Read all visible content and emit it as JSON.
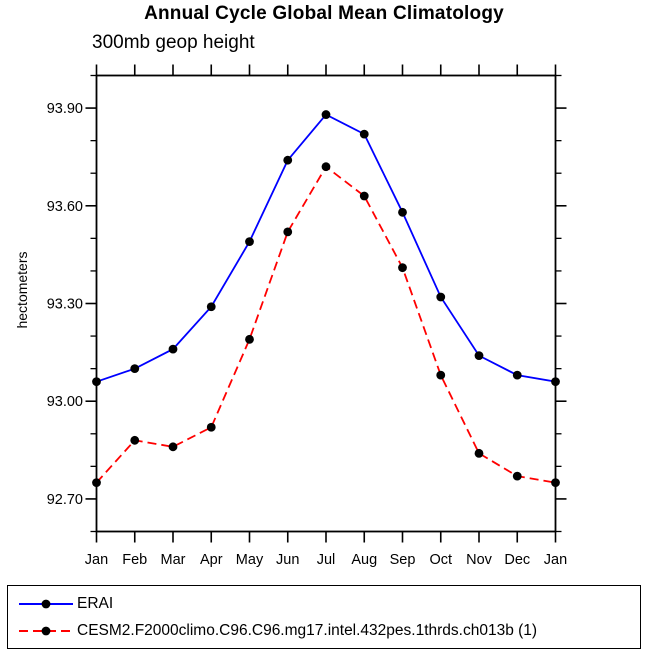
{
  "chart_data": {
    "type": "line",
    "title": "Annual Cycle Global Mean Climatology",
    "subtitle": "300mb geop height",
    "ylabel": "hectometers",
    "categories": [
      "Jan",
      "Feb",
      "Mar",
      "Apr",
      "May",
      "Jun",
      "Jul",
      "Aug",
      "Sep",
      "Oct",
      "Nov",
      "Dec",
      "Jan"
    ],
    "series": [
      {
        "name": "ERAI",
        "color": "#0000ff",
        "line_style": "solid",
        "marker": "filled-circle",
        "marker_color": "#000000",
        "values": [
          93.06,
          93.1,
          93.16,
          93.29,
          93.49,
          93.74,
          93.88,
          93.82,
          93.58,
          93.32,
          93.14,
          93.08,
          93.06
        ]
      },
      {
        "name": "CESM2.F2000climo.C96.C96.mg17.intel.432pes.1thrds.ch013b (1)",
        "color": "#ff0000",
        "line_style": "dashed",
        "marker": "filled-circle",
        "marker_color": "#000000",
        "values": [
          92.75,
          92.88,
          92.86,
          92.92,
          93.19,
          93.52,
          93.72,
          93.63,
          93.41,
          93.08,
          92.84,
          92.77,
          92.75
        ]
      }
    ],
    "ylim": [
      92.6,
      94.0
    ],
    "yticks_major": [
      92.7,
      93.0,
      93.3,
      93.6,
      93.9
    ],
    "ytick_minor_step": 0.1,
    "ytick_label_format": "2dp",
    "grid": false,
    "legend_position": "bottom-box",
    "axis_color": "#000000",
    "background": "#ffffff"
  }
}
